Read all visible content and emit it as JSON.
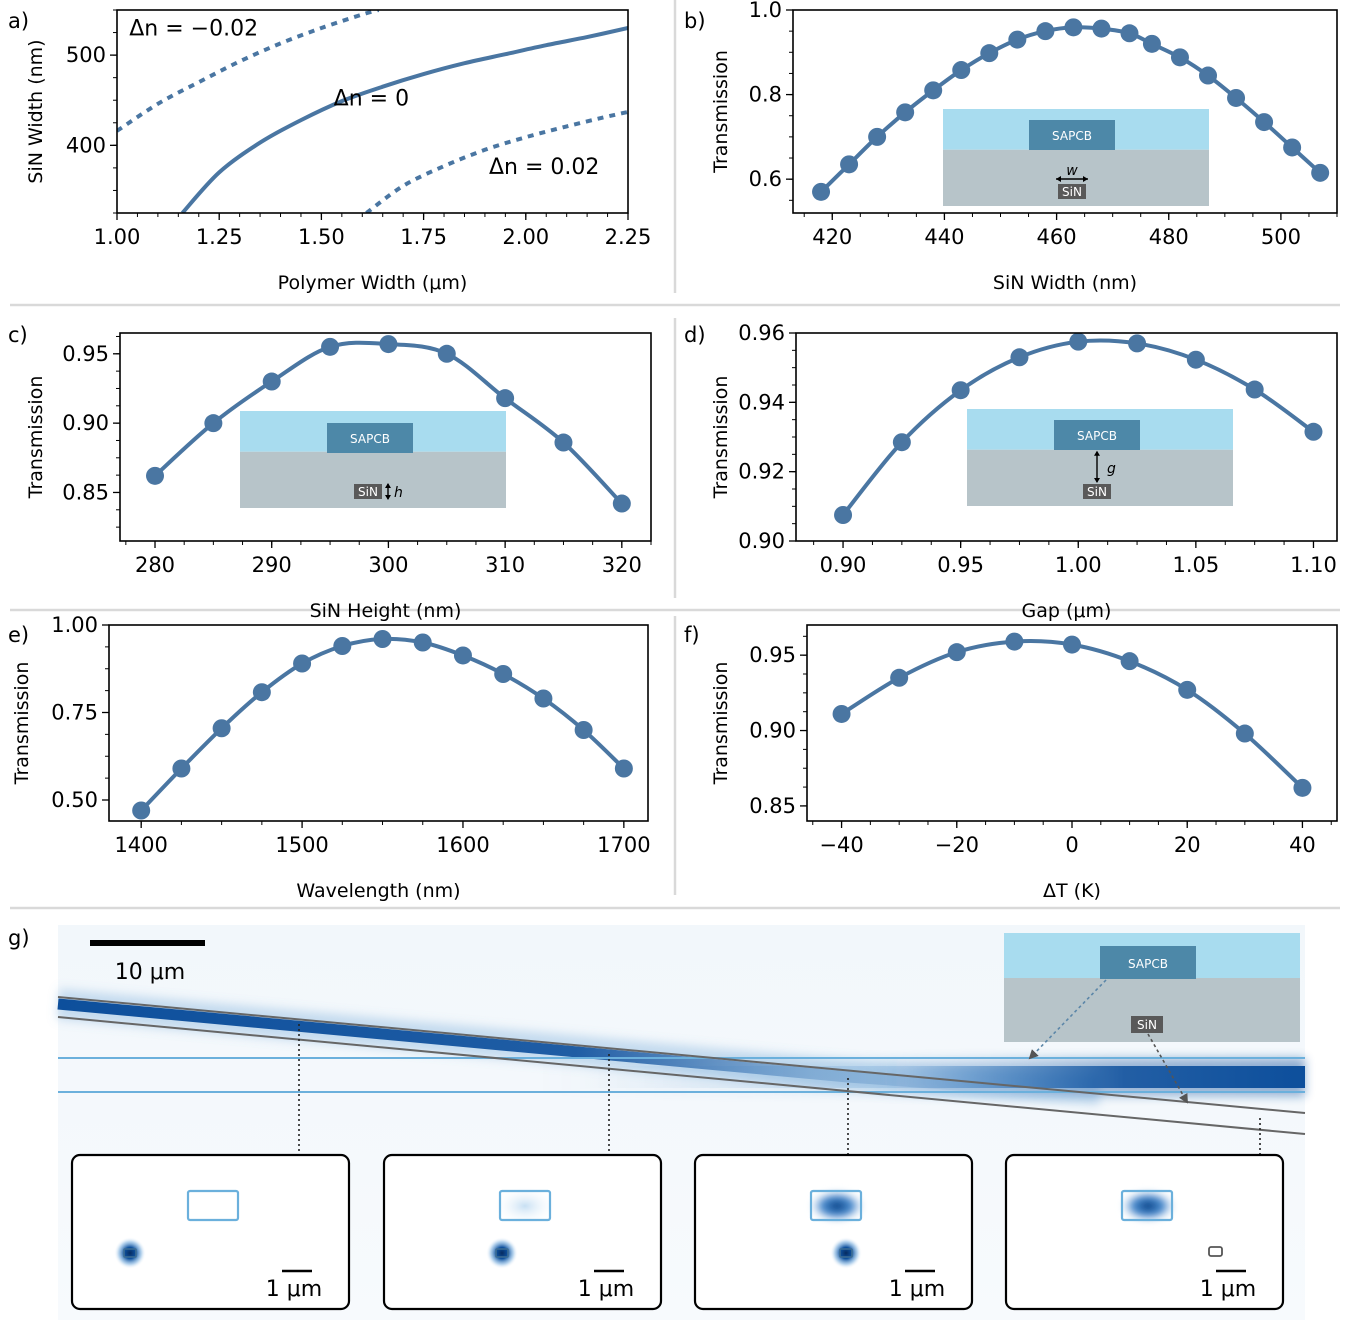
{
  "colors": {
    "curve": "#4a76a2",
    "polymer": "#a8dcef",
    "sapcb_box": "#4d88a8",
    "substrate": "#b7c4c9",
    "sin_box": "#595959",
    "mode": "#1a5fa8"
  },
  "chart_data": [
    {
      "panel": "a)",
      "type": "line",
      "xlabel": "Polymer Width (μm)",
      "ylabel": "SiN Width (nm)",
      "xlim": [
        1.0,
        2.25
      ],
      "ylim": [
        325,
        550
      ],
      "xticks": [
        "1.00",
        "1.25",
        "1.50",
        "1.75",
        "2.00",
        "2.25"
      ],
      "xtick_values": [
        1.0,
        1.25,
        1.5,
        1.75,
        2.0,
        2.25
      ],
      "yticks": [
        "400",
        "500"
      ],
      "ytick_values": [
        400,
        500
      ],
      "series": [
        {
          "name": "Δn = −0.02",
          "style": "dotted",
          "x": [
            1.0,
            1.1,
            1.2,
            1.3,
            1.4,
            1.5,
            1.6,
            1.64
          ],
          "y": [
            416,
            446,
            470,
            493,
            513,
            530,
            545,
            550
          ]
        },
        {
          "name": "Δn = 0",
          "style": "solid",
          "x": [
            1.16,
            1.25,
            1.35,
            1.45,
            1.55,
            1.65,
            1.75,
            1.85,
            1.95,
            2.05,
            2.15,
            2.25
          ],
          "y": [
            325,
            370,
            403,
            428,
            449,
            465,
            479,
            491,
            501,
            511,
            520,
            530
          ]
        },
        {
          "name": "Δn = 0.02",
          "style": "dotted",
          "x": [
            1.61,
            1.7,
            1.8,
            1.9,
            2.0,
            2.1,
            2.2,
            2.25
          ],
          "y": [
            325,
            355,
            377,
            395,
            409,
            421,
            432,
            437
          ]
        }
      ],
      "annotations": [
        {
          "text": "Δn = −0.02",
          "x": 1.03,
          "y": 522
        },
        {
          "text": "Δn = 0",
          "x": 1.53,
          "y": 444
        },
        {
          "text": "Δn = 0.02",
          "x": 1.91,
          "y": 368
        }
      ]
    },
    {
      "panel": "b)",
      "type": "line",
      "xlabel": "SiN Width (nm)",
      "ylabel": "Transmission",
      "xlim": [
        413,
        510
      ],
      "ylim": [
        0.52,
        1.0
      ],
      "xticks": [
        "420",
        "440",
        "460",
        "480",
        "500"
      ],
      "xtick_values": [
        420,
        440,
        460,
        480,
        500
      ],
      "yticks": [
        "0.6",
        "0.8",
        "1.0"
      ],
      "ytick_values": [
        0.6,
        0.8,
        1.0
      ],
      "x": [
        418,
        423,
        428,
        433,
        438,
        443,
        448,
        453,
        458,
        463,
        468,
        473,
        477,
        482,
        487,
        492,
        497,
        502,
        507
      ],
      "y": [
        0.57,
        0.635,
        0.7,
        0.758,
        0.81,
        0.858,
        0.898,
        0.93,
        0.95,
        0.959,
        0.956,
        0.945,
        0.92,
        0.888,
        0.845,
        0.792,
        0.735,
        0.675,
        0.615
      ],
      "inset": {
        "box": "SAPCB",
        "core": "SiN",
        "param": "w",
        "arrow": "horizontal"
      }
    },
    {
      "panel": "c)",
      "type": "line",
      "xlabel": "SiN Height (nm)",
      "ylabel": "Transmission",
      "xlim": [
        277,
        322.5
      ],
      "ylim": [
        0.815,
        0.965
      ],
      "xticks": [
        "280",
        "290",
        "300",
        "310",
        "320"
      ],
      "xtick_values": [
        280,
        290,
        300,
        310,
        320
      ],
      "yticks": [
        "0.85",
        "0.90",
        "0.95"
      ],
      "ytick_values": [
        0.85,
        0.9,
        0.95
      ],
      "x": [
        280,
        285,
        290,
        295,
        300,
        305,
        310,
        315,
        320
      ],
      "y": [
        0.862,
        0.9,
        0.93,
        0.955,
        0.957,
        0.95,
        0.918,
        0.886,
        0.842
      ],
      "inset": {
        "box": "SAPCB",
        "core": "SiN",
        "param": "h",
        "arrow": "vertical"
      }
    },
    {
      "panel": "d)",
      "type": "line",
      "xlabel": "Gap (μm)",
      "ylabel": "Transmission",
      "xlim": [
        0.88,
        1.11
      ],
      "ylim": [
        0.9,
        0.96
      ],
      "xticks": [
        "0.90",
        "0.95",
        "1.00",
        "1.05",
        "1.10"
      ],
      "xtick_values": [
        0.9,
        0.95,
        1.0,
        1.05,
        1.1
      ],
      "yticks": [
        "0.90",
        "0.92",
        "0.94",
        "0.96"
      ],
      "ytick_values": [
        0.9,
        0.92,
        0.94,
        0.96
      ],
      "x": [
        0.9,
        0.925,
        0.95,
        0.975,
        1.0,
        1.025,
        1.05,
        1.075,
        1.1
      ],
      "y": [
        0.9075,
        0.9285,
        0.9435,
        0.953,
        0.9575,
        0.957,
        0.9523,
        0.9437,
        0.9315
      ],
      "inset": {
        "box": "SAPCB",
        "core": "SiN",
        "param": "g",
        "arrow": "gap"
      }
    },
    {
      "panel": "e)",
      "type": "line",
      "xlabel": "Wavelength (nm)",
      "ylabel": "Transmission",
      "xlim": [
        1380,
        1715
      ],
      "ylim": [
        0.44,
        1.0
      ],
      "xticks": [
        "1400",
        "1500",
        "1600",
        "1700"
      ],
      "xtick_values": [
        1400,
        1500,
        1600,
        1700
      ],
      "yticks": [
        "0.50",
        "0.75",
        "1.00"
      ],
      "ytick_values": [
        0.5,
        0.75,
        1.0
      ],
      "x": [
        1400,
        1425,
        1450,
        1475,
        1500,
        1525,
        1550,
        1575,
        1600,
        1625,
        1650,
        1675,
        1700
      ],
      "y": [
        0.47,
        0.59,
        0.705,
        0.808,
        0.89,
        0.94,
        0.96,
        0.95,
        0.913,
        0.86,
        0.79,
        0.7,
        0.59
      ]
    },
    {
      "panel": "f)",
      "type": "line",
      "xlabel": "ΔT (K)",
      "ylabel": "Transmission",
      "xlim": [
        -46,
        46
      ],
      "ylim": [
        0.84,
        0.97
      ],
      "xticks": [
        "−40",
        "−20",
        "0",
        "20",
        "40"
      ],
      "xtick_values": [
        -40,
        -20,
        0,
        20,
        40
      ],
      "yticks": [
        "0.85",
        "0.90",
        "0.95"
      ],
      "ytick_values": [
        0.85,
        0.9,
        0.95
      ],
      "x": [
        -40,
        -30,
        -20,
        -10,
        0,
        10,
        20,
        30,
        40
      ],
      "y": [
        0.911,
        0.935,
        0.952,
        0.959,
        0.957,
        0.946,
        0.927,
        0.898,
        0.862
      ]
    }
  ],
  "panel_g": {
    "label": "g)",
    "scalebar": "10 μm",
    "inset_box": "SAPCB",
    "inset_core": "SiN",
    "mode_scalebar": "1 μm",
    "mode_panels": 4
  }
}
